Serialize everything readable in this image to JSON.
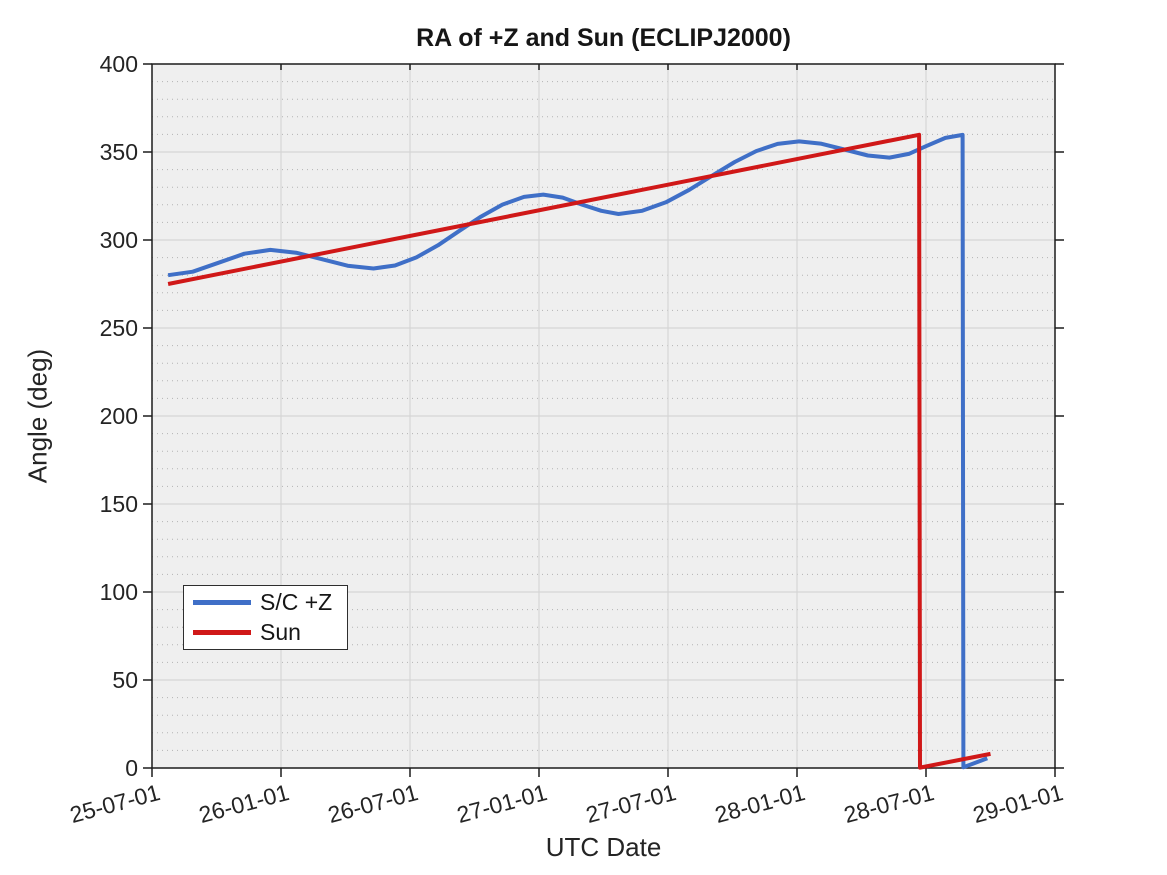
{
  "chart_data": {
    "type": "line",
    "title": "RA of +Z and Sun (ECLIPJ2000)",
    "xlabel": "UTC Date",
    "ylabel": "Angle (deg)",
    "x_unit": "months since 25-07-01",
    "xlim": [
      0,
      42
    ],
    "ylim": [
      0,
      400
    ],
    "x_ticks": [
      0,
      6,
      12,
      18,
      24,
      30,
      36,
      42
    ],
    "x_tick_labels": [
      "25-07-01",
      "26-01-01",
      "26-07-01",
      "27-01-01",
      "27-07-01",
      "28-01-01",
      "28-07-01",
      "29-01-01"
    ],
    "y_ticks": [
      0,
      50,
      100,
      150,
      200,
      250,
      300,
      350,
      400
    ],
    "y_minor_step": 10,
    "grid": {
      "major": true,
      "minor_horizontal_dotted": true
    },
    "legend_position": "lower-left",
    "series": [
      {
        "name": "S/C +Z",
        "color": "#3f6fc7",
        "width": 4,
        "points": [
          [
            0.75,
            280.0
          ],
          [
            1.9,
            282.0
          ],
          [
            3.1,
            287.1
          ],
          [
            4.3,
            292.2
          ],
          [
            5.5,
            294.4
          ],
          [
            6.7,
            292.8
          ],
          [
            7.9,
            289.1
          ],
          [
            9.1,
            285.4
          ],
          [
            10.3,
            283.8
          ],
          [
            11.3,
            285.5
          ],
          [
            12.3,
            290.1
          ],
          [
            13.3,
            297.0
          ],
          [
            14.3,
            305.2
          ],
          [
            15.3,
            313.3
          ],
          [
            16.3,
            320.1
          ],
          [
            17.3,
            324.5
          ],
          [
            18.2,
            325.8
          ],
          [
            19.1,
            324.1
          ],
          [
            20.0,
            320.1
          ],
          [
            20.9,
            316.6
          ],
          [
            21.7,
            314.8
          ],
          [
            22.8,
            316.6
          ],
          [
            23.9,
            321.4
          ],
          [
            25.0,
            328.6
          ],
          [
            26.1,
            336.9
          ],
          [
            27.1,
            344.3
          ],
          [
            28.1,
            350.5
          ],
          [
            29.1,
            354.6
          ],
          [
            30.1,
            356.0
          ],
          [
            31.1,
            354.8
          ],
          [
            32.2,
            351.4
          ],
          [
            33.3,
            348.0
          ],
          [
            34.3,
            346.8
          ],
          [
            35.2,
            348.9
          ],
          [
            36.0,
            353.3
          ],
          [
            36.9,
            358.0
          ],
          [
            37.7,
            359.7
          ],
          [
            37.74,
            0.4
          ],
          [
            38.85,
            5.5
          ]
        ]
      },
      {
        "name": "Sun",
        "color": "#d01818",
        "width": 4,
        "points": [
          [
            0.75,
            275.0
          ],
          [
            35.68,
            359.8
          ],
          [
            35.72,
            0.2
          ],
          [
            39.0,
            8.0
          ]
        ]
      }
    ]
  },
  "styles": {
    "page_bg": "#ffffff",
    "plot_bg": "#efefef",
    "grid_major": "#d5d5d5",
    "grid_minor": "#b3b3b3",
    "axis_color": "#1c1c1c",
    "text_color": "#242424",
    "legend_bg": "#ffffff",
    "legend_border": "#2e2e2e"
  }
}
